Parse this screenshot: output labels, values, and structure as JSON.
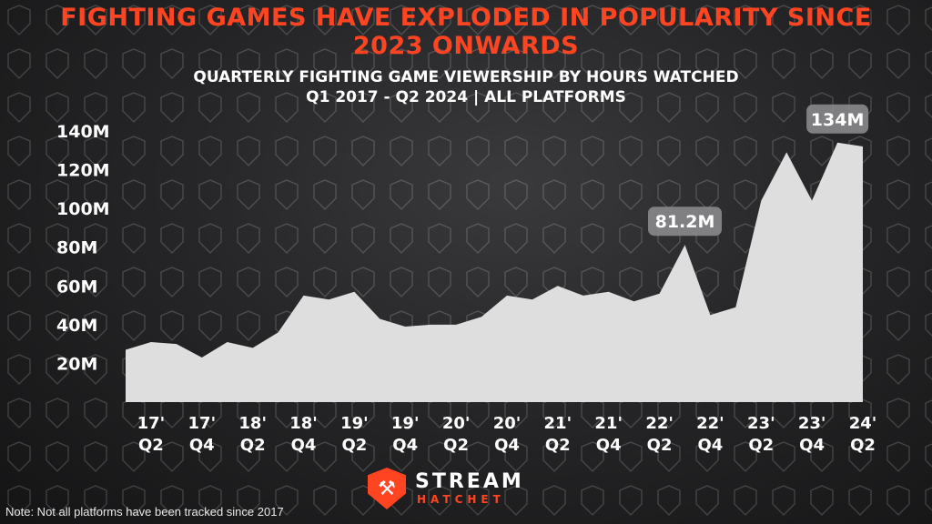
{
  "header": {
    "title_line1": "FIGHTING GAMES HAVE EXPLODED IN POPULARITY SINCE",
    "title_line2": "2023 ONWARDS",
    "subtitle_line1": "QUARTERLY FIGHTING GAME VIEWERSHIP BY HOURS WATCHED",
    "subtitle_line2": "Q1 2017 - Q2 2024 | ALL PLATFORMS"
  },
  "footer": {
    "note": "Note: Not all platforms have been tracked since 2017",
    "logo_name": "STREAM",
    "logo_sub": "HATCHET",
    "logo_icon": "stream-hatchet-shield-icon"
  },
  "colors": {
    "title": "#ff4422",
    "area_fill": "#e4e4e4",
    "callout_bg": "#8a8a8c",
    "text": "#ffffff"
  },
  "chart_data": {
    "type": "area",
    "unit": "M",
    "ylim": [
      0,
      140
    ],
    "yticks": [
      20,
      40,
      60,
      80,
      100,
      120,
      140
    ],
    "ytick_labels": [
      "20M",
      "40M",
      "60M",
      "80M",
      "100M",
      "120M",
      "140M"
    ],
    "grid": false,
    "xtick_labels": [
      [
        "17'",
        "Q2"
      ],
      [
        "17'",
        "Q4"
      ],
      [
        "18'",
        "Q2"
      ],
      [
        "18'",
        "Q4"
      ],
      [
        "19'",
        "Q2"
      ],
      [
        "19'",
        "Q4"
      ],
      [
        "20'",
        "Q2"
      ],
      [
        "20'",
        "Q4"
      ],
      [
        "21'",
        "Q2"
      ],
      [
        "21'",
        "Q4"
      ],
      [
        "22'",
        "Q2"
      ],
      [
        "22'",
        "Q4"
      ],
      [
        "23'",
        "Q2"
      ],
      [
        "23'",
        "Q4"
      ],
      [
        "24'",
        "Q2"
      ]
    ],
    "x": [
      "Q1 2017",
      "Q2 2017",
      "Q3 2017",
      "Q4 2017",
      "Q1 2018",
      "Q2 2018",
      "Q3 2018",
      "Q4 2018",
      "Q1 2019",
      "Q2 2019",
      "Q3 2019",
      "Q4 2019",
      "Q1 2020",
      "Q2 2020",
      "Q3 2020",
      "Q4 2020",
      "Q1 2021",
      "Q2 2021",
      "Q3 2021",
      "Q4 2021",
      "Q1 2022",
      "Q2 2022",
      "Q3 2022",
      "Q4 2022",
      "Q1 2023",
      "Q2 2023",
      "Q3 2023",
      "Q4 2023",
      "Q1 2024",
      "Q2 2024"
    ],
    "values": [
      27,
      31,
      30,
      23,
      31,
      28,
      36,
      55,
      53,
      57,
      43,
      39,
      40,
      40,
      44,
      55,
      53,
      60,
      55,
      57,
      52,
      56,
      81.2,
      45,
      49,
      104,
      129,
      104,
      134,
      132
    ],
    "annotations": [
      {
        "label": "81.2M",
        "x": "Q3 2022",
        "value": 81.2
      },
      {
        "label": "134M",
        "x": "Q1 2024",
        "value": 134
      }
    ]
  }
}
